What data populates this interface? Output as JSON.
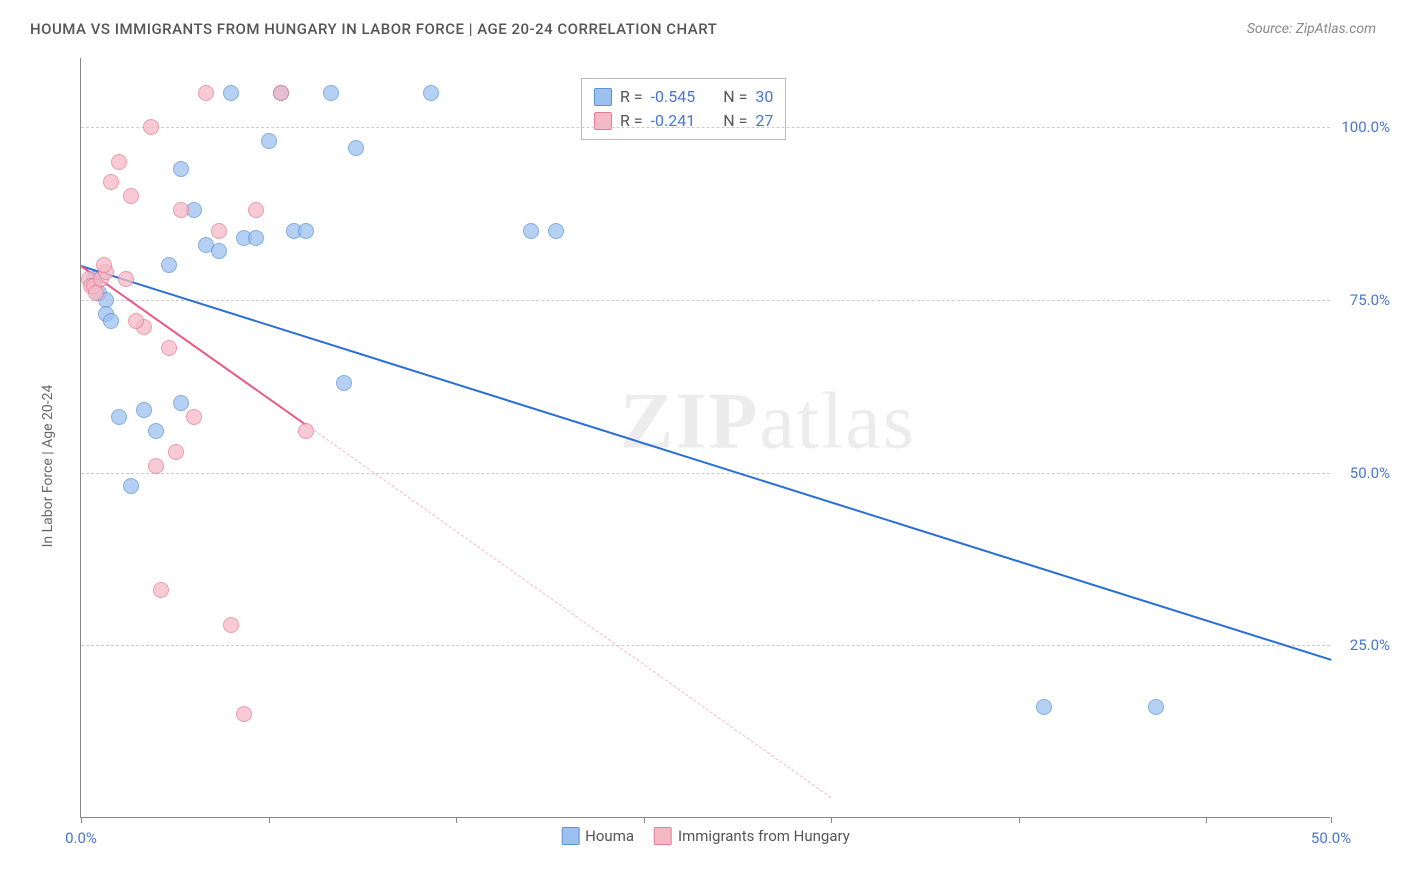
{
  "header": {
    "title": "HOUMA VS IMMIGRANTS FROM HUNGARY IN LABOR FORCE | AGE 20-24 CORRELATION CHART",
    "source_label": "Source: ZipAtlas.com"
  },
  "chart": {
    "type": "scatter",
    "y_axis_label": "In Labor Force | Age 20-24",
    "xlim": [
      0,
      50
    ],
    "ylim": [
      0,
      110
    ],
    "x_ticks": [
      0,
      7.5,
      15,
      22.5,
      30,
      37.5,
      45,
      50
    ],
    "x_tick_labels": {
      "0": "0.0%",
      "50": "50.0%"
    },
    "y_gridlines": [
      25,
      50,
      75,
      100
    ],
    "y_tick_labels": {
      "25": "25.0%",
      "50": "50.0%",
      "75": "75.0%",
      "100": "100.0%"
    },
    "background_color": "#ffffff",
    "grid_color": "#cccccc",
    "axis_color": "#888888",
    "marker_radius": 8,
    "watermark_text": "ZIPatlas",
    "series": [
      {
        "name": "Houma",
        "fill_color": "#9dc1ee",
        "stroke_color": "#5a94d8",
        "R": "-0.545",
        "N": "30",
        "regression": {
          "x1": 0,
          "y1": 80,
          "x2": 50,
          "y2": 23,
          "color": "#2a6fd6",
          "width": 2,
          "style": "solid"
        },
        "points": [
          [
            0.5,
            78
          ],
          [
            0.7,
            76
          ],
          [
            1.0,
            75
          ],
          [
            1.0,
            73
          ],
          [
            1.2,
            72
          ],
          [
            1.5,
            58
          ],
          [
            2.0,
            48
          ],
          [
            2.5,
            59
          ],
          [
            3.0,
            56
          ],
          [
            3.5,
            80
          ],
          [
            4.0,
            94
          ],
          [
            4.5,
            88
          ],
          [
            5.0,
            83
          ],
          [
            5.5,
            82
          ],
          [
            6.0,
            105
          ],
          [
            6.5,
            84
          ],
          [
            7.0,
            84
          ],
          [
            7.5,
            98
          ],
          [
            8.0,
            105
          ],
          [
            8.5,
            85
          ],
          [
            9.0,
            85
          ],
          [
            10.0,
            105
          ],
          [
            10.5,
            63
          ],
          [
            11.0,
            97
          ],
          [
            14.0,
            105
          ],
          [
            18.0,
            85
          ],
          [
            19.0,
            85
          ],
          [
            38.5,
            16
          ],
          [
            43.0,
            16
          ],
          [
            4.0,
            60
          ]
        ]
      },
      {
        "name": "Immigrants from Hungary",
        "fill_color": "#f5b9c6",
        "stroke_color": "#e67a97",
        "R": "-0.241",
        "N": "27",
        "regression_solid": {
          "x1": 0,
          "y1": 80,
          "x2": 9,
          "y2": 57,
          "color": "#e85a85",
          "width": 2
        },
        "regression_dashed": {
          "x1": 9,
          "y1": 57,
          "x2": 30,
          "y2": 3,
          "color": "#f5b9c6",
          "width": 1
        },
        "points": [
          [
            0.3,
            78
          ],
          [
            0.4,
            77
          ],
          [
            0.5,
            77
          ],
          [
            0.6,
            76
          ],
          [
            0.8,
            78
          ],
          [
            1.0,
            79
          ],
          [
            1.2,
            92
          ],
          [
            1.5,
            95
          ],
          [
            2.0,
            90
          ],
          [
            2.5,
            71
          ],
          [
            2.8,
            100
          ],
          [
            3.0,
            51
          ],
          [
            3.5,
            68
          ],
          [
            4.0,
            88
          ],
          [
            4.5,
            58
          ],
          [
            5.0,
            105
          ],
          [
            5.5,
            85
          ],
          [
            6.0,
            28
          ],
          [
            6.5,
            15
          ],
          [
            3.2,
            33
          ],
          [
            7.0,
            88
          ],
          [
            8.0,
            105
          ],
          [
            9.0,
            56
          ],
          [
            3.8,
            53
          ],
          [
            2.2,
            72
          ],
          [
            1.8,
            78
          ],
          [
            0.9,
            80
          ]
        ]
      }
    ],
    "legend_top": {
      "rows": [
        {
          "swatch_fill": "#9dc1ee",
          "swatch_stroke": "#5a94d8",
          "r_label": "R =",
          "r_val": "-0.545",
          "n_label": "N =",
          "n_val": "30"
        },
        {
          "swatch_fill": "#f5b9c6",
          "swatch_stroke": "#e67a97",
          "r_label": "R =",
          "r_val": "-0.241",
          "n_label": "N =",
          "n_val": "27"
        }
      ]
    },
    "legend_bottom": [
      {
        "swatch_fill": "#9dc1ee",
        "swatch_stroke": "#5a94d8",
        "label": "Houma"
      },
      {
        "swatch_fill": "#f5b9c6",
        "swatch_stroke": "#e67a97",
        "label": "Immigrants from Hungary"
      }
    ]
  }
}
